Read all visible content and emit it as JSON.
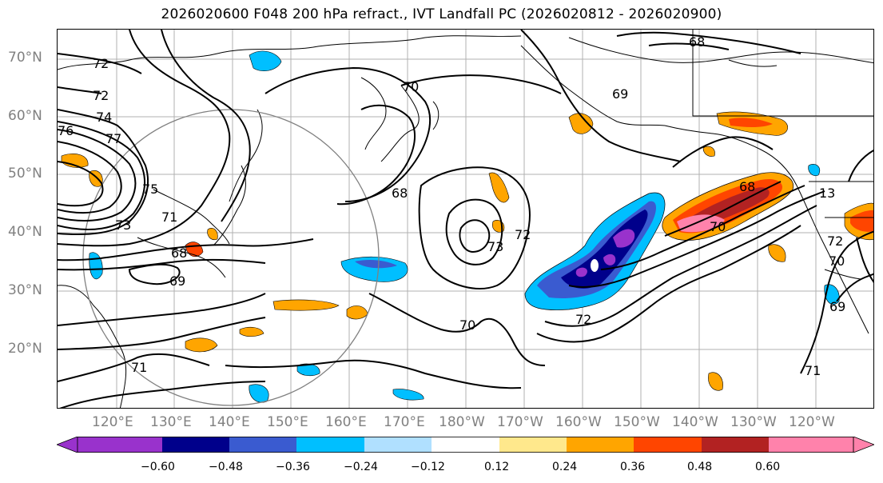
{
  "title": "2026020600 F048 200 hPa refract., IVT Landfall PC (2026020812 - 2026020900)",
  "lat_labels": [
    "70°N",
    "60°N",
    "50°N",
    "40°N",
    "30°N",
    "20°N"
  ],
  "lon_labels": [
    "120°E",
    "130°E",
    "140°E",
    "150°E",
    "160°E",
    "170°E",
    "180°W",
    "170°W",
    "160°W",
    "150°W",
    "140°W",
    "130°W",
    "120°W"
  ],
  "colorbar": {
    "colors": [
      "#9932CC",
      "#00008B",
      "#3A5BD0",
      "#00BFFF",
      "#B0E0FF",
      "#FFFFFF",
      "#FFE88C",
      "#FFA500",
      "#FF4500",
      "#B22222",
      "#FF82AB"
    ],
    "tick_labels": [
      "−0.60",
      "−0.48",
      "−0.36",
      "−0.24",
      "−0.12",
      "0.12",
      "0.24",
      "0.36",
      "0.48",
      "0.60"
    ]
  },
  "contour_labels": [
    "72",
    "72",
    "74",
    "76",
    "77",
    "75",
    "73",
    "71",
    "68",
    "69",
    "70",
    "68",
    "69",
    "68",
    "72",
    "73",
    "70",
    "72",
    "71",
    "70",
    "68",
    "72",
    "13",
    "69",
    "71",
    "70"
  ]
}
